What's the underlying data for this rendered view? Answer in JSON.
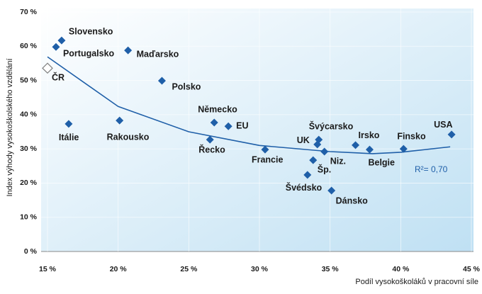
{
  "chart_data": {
    "type": "scatter",
    "y_label": "Index výhody vysokoškolského vzdělání",
    "x_label": "Podíl vysokoškoláků v pracovní síle",
    "xlim": [
      15,
      45
    ],
    "ylim": [
      0,
      70
    ],
    "xticks": [
      {
        "value": 15,
        "label": "15 %"
      },
      {
        "value": 20,
        "label": "20 %"
      },
      {
        "value": 25,
        "label": "25 %"
      },
      {
        "value": 30,
        "label": "30 %"
      },
      {
        "value": 35,
        "label": "35 %"
      },
      {
        "value": 40,
        "label": "40 %"
      },
      {
        "value": 45,
        "label": "45 %"
      }
    ],
    "yticks": [
      {
        "value": 0,
        "label": "0 %"
      },
      {
        "value": 10,
        "label": "10 %"
      },
      {
        "value": 20,
        "label": "20 %"
      },
      {
        "value": 30,
        "label": "30 %"
      },
      {
        "value": 40,
        "label": "40 %"
      },
      {
        "value": 50,
        "label": "50 %"
      },
      {
        "value": 60,
        "label": "60 %"
      },
      {
        "value": 70,
        "label": "70 %"
      }
    ],
    "grid": true,
    "series": [
      {
        "color": "#1f5fa8",
        "labels": [
          "Slovensko",
          "Portugalsko",
          "Maďarsko",
          "Polsko",
          "Itálie",
          "Rakousko",
          "Německo",
          "EU",
          "Řecko",
          "Francie",
          "Švýcarsko",
          "UK",
          "Niz.",
          "Šp.",
          "Švédsko",
          "Dánsko",
          "Irsko",
          "Belgie",
          "Finsko",
          "USA"
        ],
        "x": [
          16.0,
          15.6,
          20.7,
          23.1,
          16.5,
          20.1,
          26.8,
          27.8,
          26.5,
          30.4,
          34.2,
          34.1,
          34.6,
          33.8,
          33.4,
          35.1,
          36.8,
          37.8,
          40.2,
          43.6
        ],
        "values": [
          61.7,
          59.8,
          58.8,
          49.9,
          37.3,
          38.3,
          37.7,
          36.6,
          32.7,
          29.8,
          32.7,
          31.3,
          29.2,
          26.7,
          22.4,
          17.8,
          31.1,
          29.8,
          30.0,
          34.2
        ]
      },
      {
        "color": "#ffffff",
        "stroke": "#7f7f7f",
        "labels": [
          "ČR"
        ],
        "x": [
          15.0
        ],
        "values": [
          53.6
        ]
      }
    ],
    "trendline": {
      "color": "#1f5fa8",
      "x": [
        15,
        20,
        25,
        30,
        35,
        38,
        40,
        43.5
      ],
      "y": [
        56.9,
        42.4,
        35.0,
        31.0,
        29.2,
        28.6,
        29.0,
        30.6
      ]
    },
    "annotation": "R²= 0,70"
  }
}
